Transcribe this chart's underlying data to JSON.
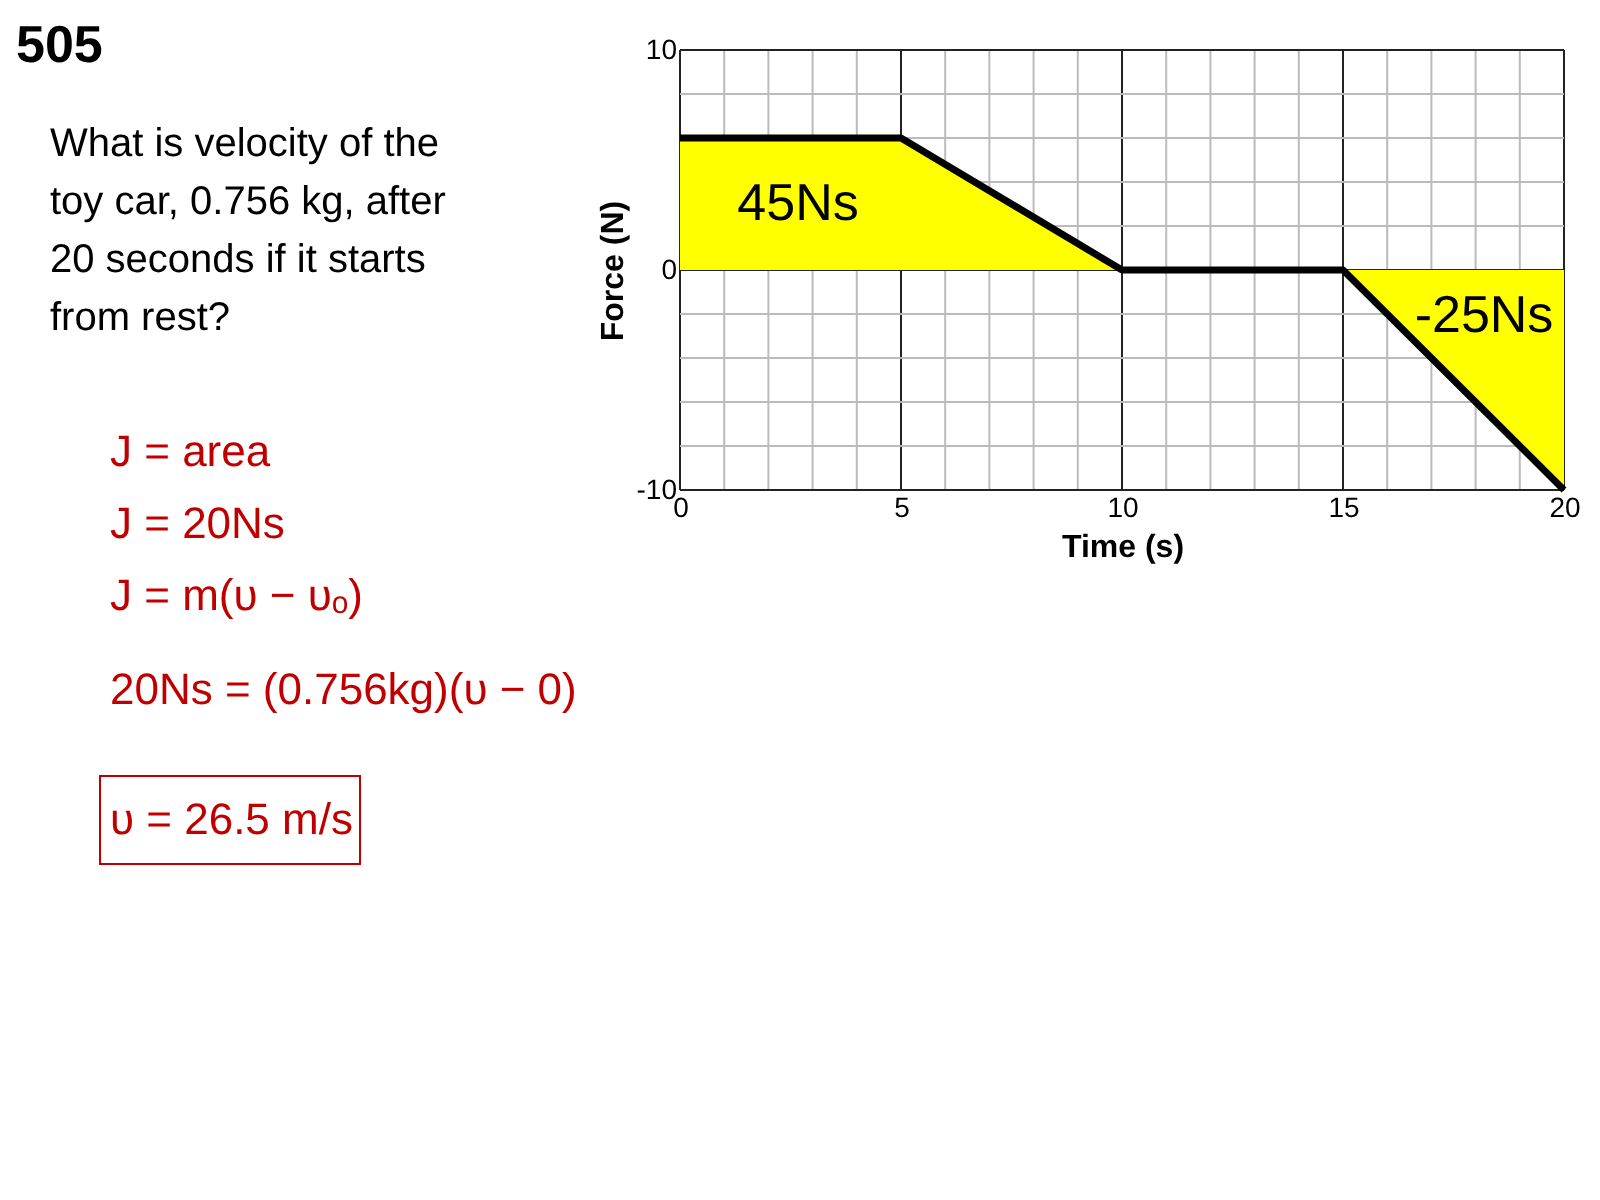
{
  "chart_data": {
    "type": "line",
    "xlabel": "Time (s)",
    "ylabel": "Force (N)",
    "x": [
      0,
      5,
      10,
      15,
      20
    ],
    "series": [
      {
        "type": "area",
        "color": "#ffff00",
        "values": [
          6,
          6,
          0,
          0,
          -10
        ]
      }
    ],
    "xlim": [
      0,
      20
    ],
    "ylim": [
      -10,
      10
    ],
    "xticks": [
      0,
      {
        "value": 1,
        "label": null
      },
      {
        "value": 2,
        "label": null
      },
      {
        "value": 3,
        "label": null
      },
      {
        "value": 4,
        "label": null
      },
      5,
      {
        "value": 6,
        "label": null
      },
      {
        "value": 7,
        "label": null
      },
      {
        "value": 8,
        "label": null
      },
      {
        "value": 9,
        "label": null
      },
      10,
      {
        "value": 11,
        "label": null
      },
      {
        "value": 12,
        "label": null
      },
      {
        "value": 13,
        "label": null
      },
      {
        "value": 14,
        "label": null
      },
      15,
      {
        "value": 16,
        "label": null
      },
      {
        "value": 17,
        "label": null
      },
      {
        "value": 18,
        "label": null
      },
      {
        "value": 19,
        "label": null
      },
      20
    ],
    "yticks": [
      -10,
      {
        "value": -8,
        "label": null
      },
      {
        "value": -6,
        "label": null
      },
      {
        "value": -4,
        "label": null
      },
      {
        "value": -2,
        "label": null
      },
      0,
      {
        "value": 2,
        "label": null
      },
      {
        "value": 4,
        "label": null
      },
      {
        "value": 6,
        "label": null
      },
      {
        "value": 8,
        "label": null
      },
      10
    ],
    "grid": true,
    "line_style": "solid",
    "annotations": [
      "45Ns",
      "-25Ns",
      "505",
      "What is velocity of the toy car, 0.756 kg, after 20 seconds if it starts from rest?",
      "J = area",
      "J = 20Ns",
      "J = m(υ − υₒ)",
      "20Ns = (0.756kg)(υ − 0)",
      "υ = 26.5 m/s"
    ]
  }
}
